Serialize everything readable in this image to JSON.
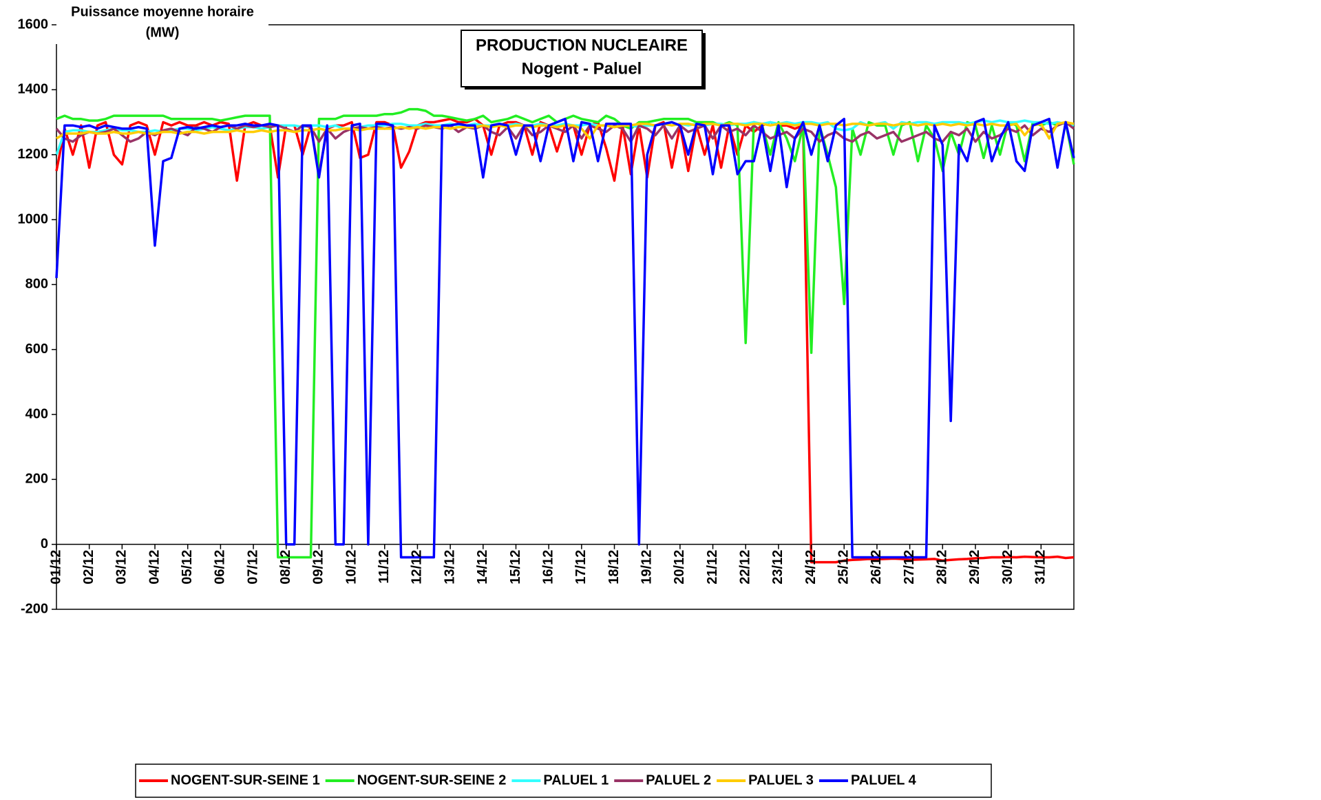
{
  "chart_data": {
    "type": "line",
    "title": "PRODUCTION NUCLEAIRE",
    "subtitle": "Nogent - Paluel",
    "y_label": [
      "Puissance moyenne horaire",
      "(MW)"
    ],
    "ylim": [
      -200,
      1600
    ],
    "yticks": [
      -200,
      0,
      200,
      400,
      600,
      800,
      1000,
      1200,
      1400,
      1600
    ],
    "xlim": [
      0,
      31
    ],
    "xticks": [
      {
        "value": 0,
        "label": "01/12"
      },
      {
        "value": 1,
        "label": "02/12"
      },
      {
        "value": 2,
        "label": "03/12"
      },
      {
        "value": 3,
        "label": "04/12"
      },
      {
        "value": 4,
        "label": "05/12"
      },
      {
        "value": 5,
        "label": "06/12"
      },
      {
        "value": 6,
        "label": "07/12"
      },
      {
        "value": 7,
        "label": "08/12"
      },
      {
        "value": 8,
        "label": "09/12"
      },
      {
        "value": 9,
        "label": "10/12"
      },
      {
        "value": 10,
        "label": "11/12"
      },
      {
        "value": 11,
        "label": "12/12"
      },
      {
        "value": 12,
        "label": "13/12"
      },
      {
        "value": 13,
        "label": "14/12"
      },
      {
        "value": 14,
        "label": "15/12"
      },
      {
        "value": 15,
        "label": "16/12"
      },
      {
        "value": 16,
        "label": "17/12"
      },
      {
        "value": 17,
        "label": "18/12"
      },
      {
        "value": 18,
        "label": "19/12"
      },
      {
        "value": 19,
        "label": "20/12"
      },
      {
        "value": 20,
        "label": "21/12"
      },
      {
        "value": 21,
        "label": "22/12"
      },
      {
        "value": 22,
        "label": "23/12"
      },
      {
        "value": 23,
        "label": "24/12"
      },
      {
        "value": 24,
        "label": "25/12"
      },
      {
        "value": 25,
        "label": "26/12"
      },
      {
        "value": 26,
        "label": "27/12"
      },
      {
        "value": 27,
        "label": "28/12"
      },
      {
        "value": 28,
        "label": "29/12"
      },
      {
        "value": 29,
        "label": "30/12"
      },
      {
        "value": 30,
        "label": "31/12"
      }
    ],
    "grid": false,
    "legend": "bottom",
    "x": [
      0,
      0.25,
      0.5,
      0.75,
      1,
      1.25,
      1.5,
      1.75,
      2,
      2.25,
      2.5,
      2.75,
      3,
      3.25,
      3.5,
      3.75,
      4,
      4.25,
      4.5,
      4.75,
      5,
      5.25,
      5.5,
      5.75,
      6,
      6.25,
      6.5,
      6.75,
      7,
      7.25,
      7.5,
      7.75,
      8,
      8.25,
      8.5,
      8.75,
      9,
      9.25,
      9.5,
      9.75,
      10,
      10.25,
      10.5,
      10.75,
      11,
      11.25,
      11.5,
      11.75,
      12,
      12.25,
      12.5,
      12.75,
      13,
      13.25,
      13.5,
      13.75,
      14,
      14.25,
      14.5,
      14.75,
      15,
      15.25,
      15.5,
      15.75,
      16,
      16.25,
      16.5,
      16.75,
      17,
      17.25,
      17.5,
      17.75,
      18,
      18.25,
      18.5,
      18.75,
      19,
      19.25,
      19.5,
      19.75,
      20,
      20.25,
      20.5,
      20.75,
      21,
      21.25,
      21.5,
      21.75,
      22,
      22.25,
      22.5,
      22.75,
      23,
      23.25,
      23.5,
      23.75,
      24,
      24.25,
      24.5,
      24.75,
      25,
      25.25,
      25.5,
      25.75,
      26,
      26.25,
      26.5,
      26.75,
      27,
      27.25,
      27.5,
      27.75,
      28,
      28.25,
      28.5,
      28.75,
      29,
      29.25,
      29.5,
      29.75,
      30,
      30.25,
      30.5,
      30.75,
      31
    ],
    "series": [
      {
        "name": "NOGENT-SUR-SEINE 1",
        "color": "#ff0000",
        "values": [
          1150,
          1280,
          1200,
          1290,
          1160,
          1290,
          1300,
          1200,
          1170,
          1290,
          1300,
          1290,
          1200,
          1300,
          1290,
          1300,
          1290,
          1290,
          1300,
          1290,
          1300,
          1295,
          1120,
          1290,
          1300,
          1290,
          1290,
          1130,
          1290,
          1290,
          1200,
          1290,
          1140,
          1280,
          1290,
          1290,
          1300,
          1190,
          1200,
          1300,
          1300,
          1290,
          1160,
          1210,
          1290,
          1300,
          1300,
          1305,
          1310,
          1300,
          1300,
          1310,
          1290,
          1200,
          1290,
          1300,
          1300,
          1290,
          1200,
          1300,
          1290,
          1210,
          1290,
          1290,
          1200,
          1290,
          1300,
          1220,
          1120,
          1290,
          1140,
          1290,
          1130,
          1290,
          1300,
          1160,
          1290,
          1150,
          1290,
          1200,
          1290,
          1160,
          1290,
          1200,
          1290,
          1270,
          1290,
          1300,
          1290,
          1290,
          1280,
          1290,
          -55,
          -55,
          -55,
          -55,
          -50,
          -48,
          -47,
          -45,
          -46,
          -45,
          -44,
          -45,
          -48,
          -47,
          -46,
          -45,
          -50,
          -48,
          -46,
          -45,
          -43,
          -42,
          -40,
          -40,
          -39,
          -40,
          -38,
          -39,
          -40,
          -40,
          -38,
          -42,
          -40
        ]
      },
      {
        "name": "NOGENT-SUR-SEINE 2",
        "color": "#22ee22",
        "values": [
          1310,
          1320,
          1310,
          1310,
          1305,
          1305,
          1310,
          1320,
          1320,
          1320,
          1320,
          1320,
          1320,
          1320,
          1310,
          1310,
          1310,
          1310,
          1310,
          1310,
          1305,
          1310,
          1315,
          1320,
          1320,
          1320,
          1320,
          -40,
          -40,
          -40,
          -40,
          -40,
          1310,
          1310,
          1310,
          1320,
          1320,
          1320,
          1320,
          1320,
          1325,
          1325,
          1330,
          1340,
          1340,
          1335,
          1320,
          1320,
          1315,
          1310,
          1305,
          1310,
          1320,
          1300,
          1305,
          1310,
          1320,
          1310,
          1300,
          1310,
          1320,
          1300,
          1310,
          1320,
          1310,
          1305,
          1300,
          1320,
          1310,
          1290,
          1280,
          1300,
          1300,
          1305,
          1310,
          1310,
          1310,
          1310,
          1300,
          1300,
          1300,
          1290,
          1300,
          1290,
          620,
          1300,
          1290,
          1200,
          1300,
          1250,
          1180,
          1290,
          590,
          1290,
          1200,
          1100,
          740,
          1280,
          1200,
          1300,
          1290,
          1290,
          1200,
          1290,
          1300,
          1180,
          1290,
          1250,
          1150,
          1270,
          1200,
          1300,
          1290,
          1190,
          1290,
          1200,
          1300,
          1290,
          1180,
          1300,
          1290,
          1300,
          1290,
          1300,
          1170
        ]
      },
      {
        "name": "PALUEL 1",
        "color": "#33ffff",
        "values": [
          1200,
          1270,
          1275,
          1275,
          1270,
          1270,
          1275,
          1280,
          1275,
          1275,
          1270,
          1270,
          1275,
          1270,
          1275,
          1280,
          1280,
          1275,
          1280,
          1285,
          1280,
          1275,
          1280,
          1285,
          1285,
          1280,
          1285,
          1290,
          1290,
          1290,
          1285,
          1290,
          1290,
          1285,
          1290,
          1280,
          1280,
          1285,
          1290,
          1290,
          1290,
          1295,
          1295,
          1290,
          1290,
          1295,
          1290,
          1290,
          1295,
          1290,
          1290,
          1295,
          1290,
          1290,
          1295,
          1290,
          1295,
          1290,
          1290,
          1295,
          1290,
          1290,
          1295,
          1290,
          1290,
          1295,
          1290,
          1290,
          1285,
          1290,
          1290,
          1285,
          1290,
          1290,
          1295,
          1290,
          1295,
          1290,
          1295,
          1290,
          1295,
          1295,
          1290,
          1295,
          1295,
          1300,
          1295,
          1300,
          1295,
          1300,
          1295,
          1300,
          1300,
          1295,
          1300,
          1280,
          1275,
          1280,
          1300,
          1290,
          1295,
          1300,
          1280,
          1300,
          1295,
          1300,
          1300,
          1295,
          1300,
          1300,
          1300,
          1295,
          1300,
          1305,
          1300,
          1305,
          1300,
          1300,
          1305,
          1300,
          1300,
          1295,
          1300,
          1295,
          1290
        ]
      },
      {
        "name": "PALUEL 2",
        "color": "#993366",
        "values": [
          1280,
          1250,
          1240,
          1260,
          1270,
          1265,
          1270,
          1280,
          1260,
          1240,
          1250,
          1270,
          1260,
          1275,
          1280,
          1270,
          1260,
          1285,
          1280,
          1270,
          1285,
          1290,
          1280,
          1290,
          1285,
          1290,
          1285,
          1290,
          1280,
          1270,
          1290,
          1285,
          1240,
          1280,
          1250,
          1270,
          1280,
          1285,
          1280,
          1285,
          1280,
          1285,
          1280,
          1285,
          1280,
          1290,
          1285,
          1280,
          1290,
          1270,
          1285,
          1280,
          1290,
          1270,
          1260,
          1285,
          1250,
          1290,
          1260,
          1270,
          1290,
          1280,
          1270,
          1290,
          1250,
          1290,
          1280,
          1270,
          1290,
          1280,
          1240,
          1290,
          1280,
          1260,
          1290,
          1250,
          1290,
          1270,
          1280,
          1290,
          1250,
          1290,
          1270,
          1280,
          1260,
          1290,
          1270,
          1250,
          1260,
          1270,
          1250,
          1280,
          1270,
          1240,
          1260,
          1270,
          1250,
          1240,
          1260,
          1270,
          1250,
          1260,
          1270,
          1240,
          1250,
          1260,
          1270,
          1250,
          1240,
          1270,
          1260,
          1280,
          1240,
          1270,
          1250,
          1260,
          1280,
          1270,
          1290,
          1260,
          1280,
          1270,
          1290,
          1300,
          1280
        ]
      },
      {
        "name": "PALUEL 3",
        "color": "#ffcc00",
        "values": [
          1250,
          1265,
          1265,
          1265,
          1270,
          1265,
          1265,
          1270,
          1265,
          1265,
          1270,
          1265,
          1265,
          1270,
          1270,
          1265,
          1270,
          1270,
          1265,
          1270,
          1270,
          1270,
          1275,
          1270,
          1270,
          1275,
          1270,
          1275,
          1275,
          1270,
          1275,
          1275,
          1280,
          1275,
          1275,
          1280,
          1280,
          1275,
          1280,
          1280,
          1280,
          1280,
          1285,
          1280,
          1285,
          1280,
          1285,
          1285,
          1280,
          1285,
          1285,
          1285,
          1290,
          1285,
          1290,
          1285,
          1290,
          1290,
          1285,
          1290,
          1290,
          1285,
          1290,
          1290,
          1280,
          1250,
          1290,
          1290,
          1285,
          1290,
          1290,
          1295,
          1295,
          1290,
          1295,
          1290,
          1295,
          1295,
          1290,
          1295,
          1295,
          1290,
          1295,
          1295,
          1290,
          1295,
          1295,
          1290,
          1295,
          1295,
          1290,
          1295,
          1295,
          1290,
          1295,
          1295,
          1290,
          1295,
          1295,
          1290,
          1295,
          1295,
          1290,
          1295,
          1295,
          1290,
          1295,
          1290,
          1295,
          1290,
          1295,
          1290,
          1295,
          1290,
          1295,
          1290,
          1290,
          1295,
          1260,
          1290,
          1295,
          1250,
          1295,
          1300,
          1295
        ]
      },
      {
        "name": "PALUEL 4",
        "color": "#0000ff",
        "values": [
          820,
          1290,
          1290,
          1285,
          1290,
          1280,
          1290,
          1285,
          1280,
          1280,
          1285,
          1280,
          920,
          1180,
          1190,
          1280,
          1285,
          1280,
          1285,
          1290,
          1285,
          1290,
          1290,
          1295,
          1290,
          1290,
          1295,
          1290,
          0,
          0,
          1290,
          1290,
          1130,
          1290,
          0,
          0,
          1290,
          1295,
          0,
          1295,
          1295,
          1290,
          -40,
          -40,
          -40,
          -40,
          -40,
          1290,
          1290,
          1295,
          1290,
          1290,
          1130,
          1290,
          1295,
          1290,
          1200,
          1290,
          1290,
          1180,
          1290,
          1300,
          1310,
          1180,
          1300,
          1295,
          1180,
          1295,
          1295,
          1295,
          1295,
          0,
          1200,
          1290,
          1295,
          1300,
          1290,
          1200,
          1295,
          1290,
          1140,
          1290,
          1290,
          1140,
          1180,
          1180,
          1290,
          1150,
          1290,
          1100,
          1250,
          1300,
          1200,
          1290,
          1180,
          1290,
          1310,
          -40,
          -40,
          -40,
          -40,
          -40,
          -40,
          -40,
          -40,
          -40,
          -40,
          1290,
          1230,
          380,
          1230,
          1180,
          1300,
          1310,
          1180,
          1250,
          1300,
          1180,
          1150,
          1290,
          1300,
          1310,
          1160,
          1300,
          1190
        ]
      }
    ]
  }
}
